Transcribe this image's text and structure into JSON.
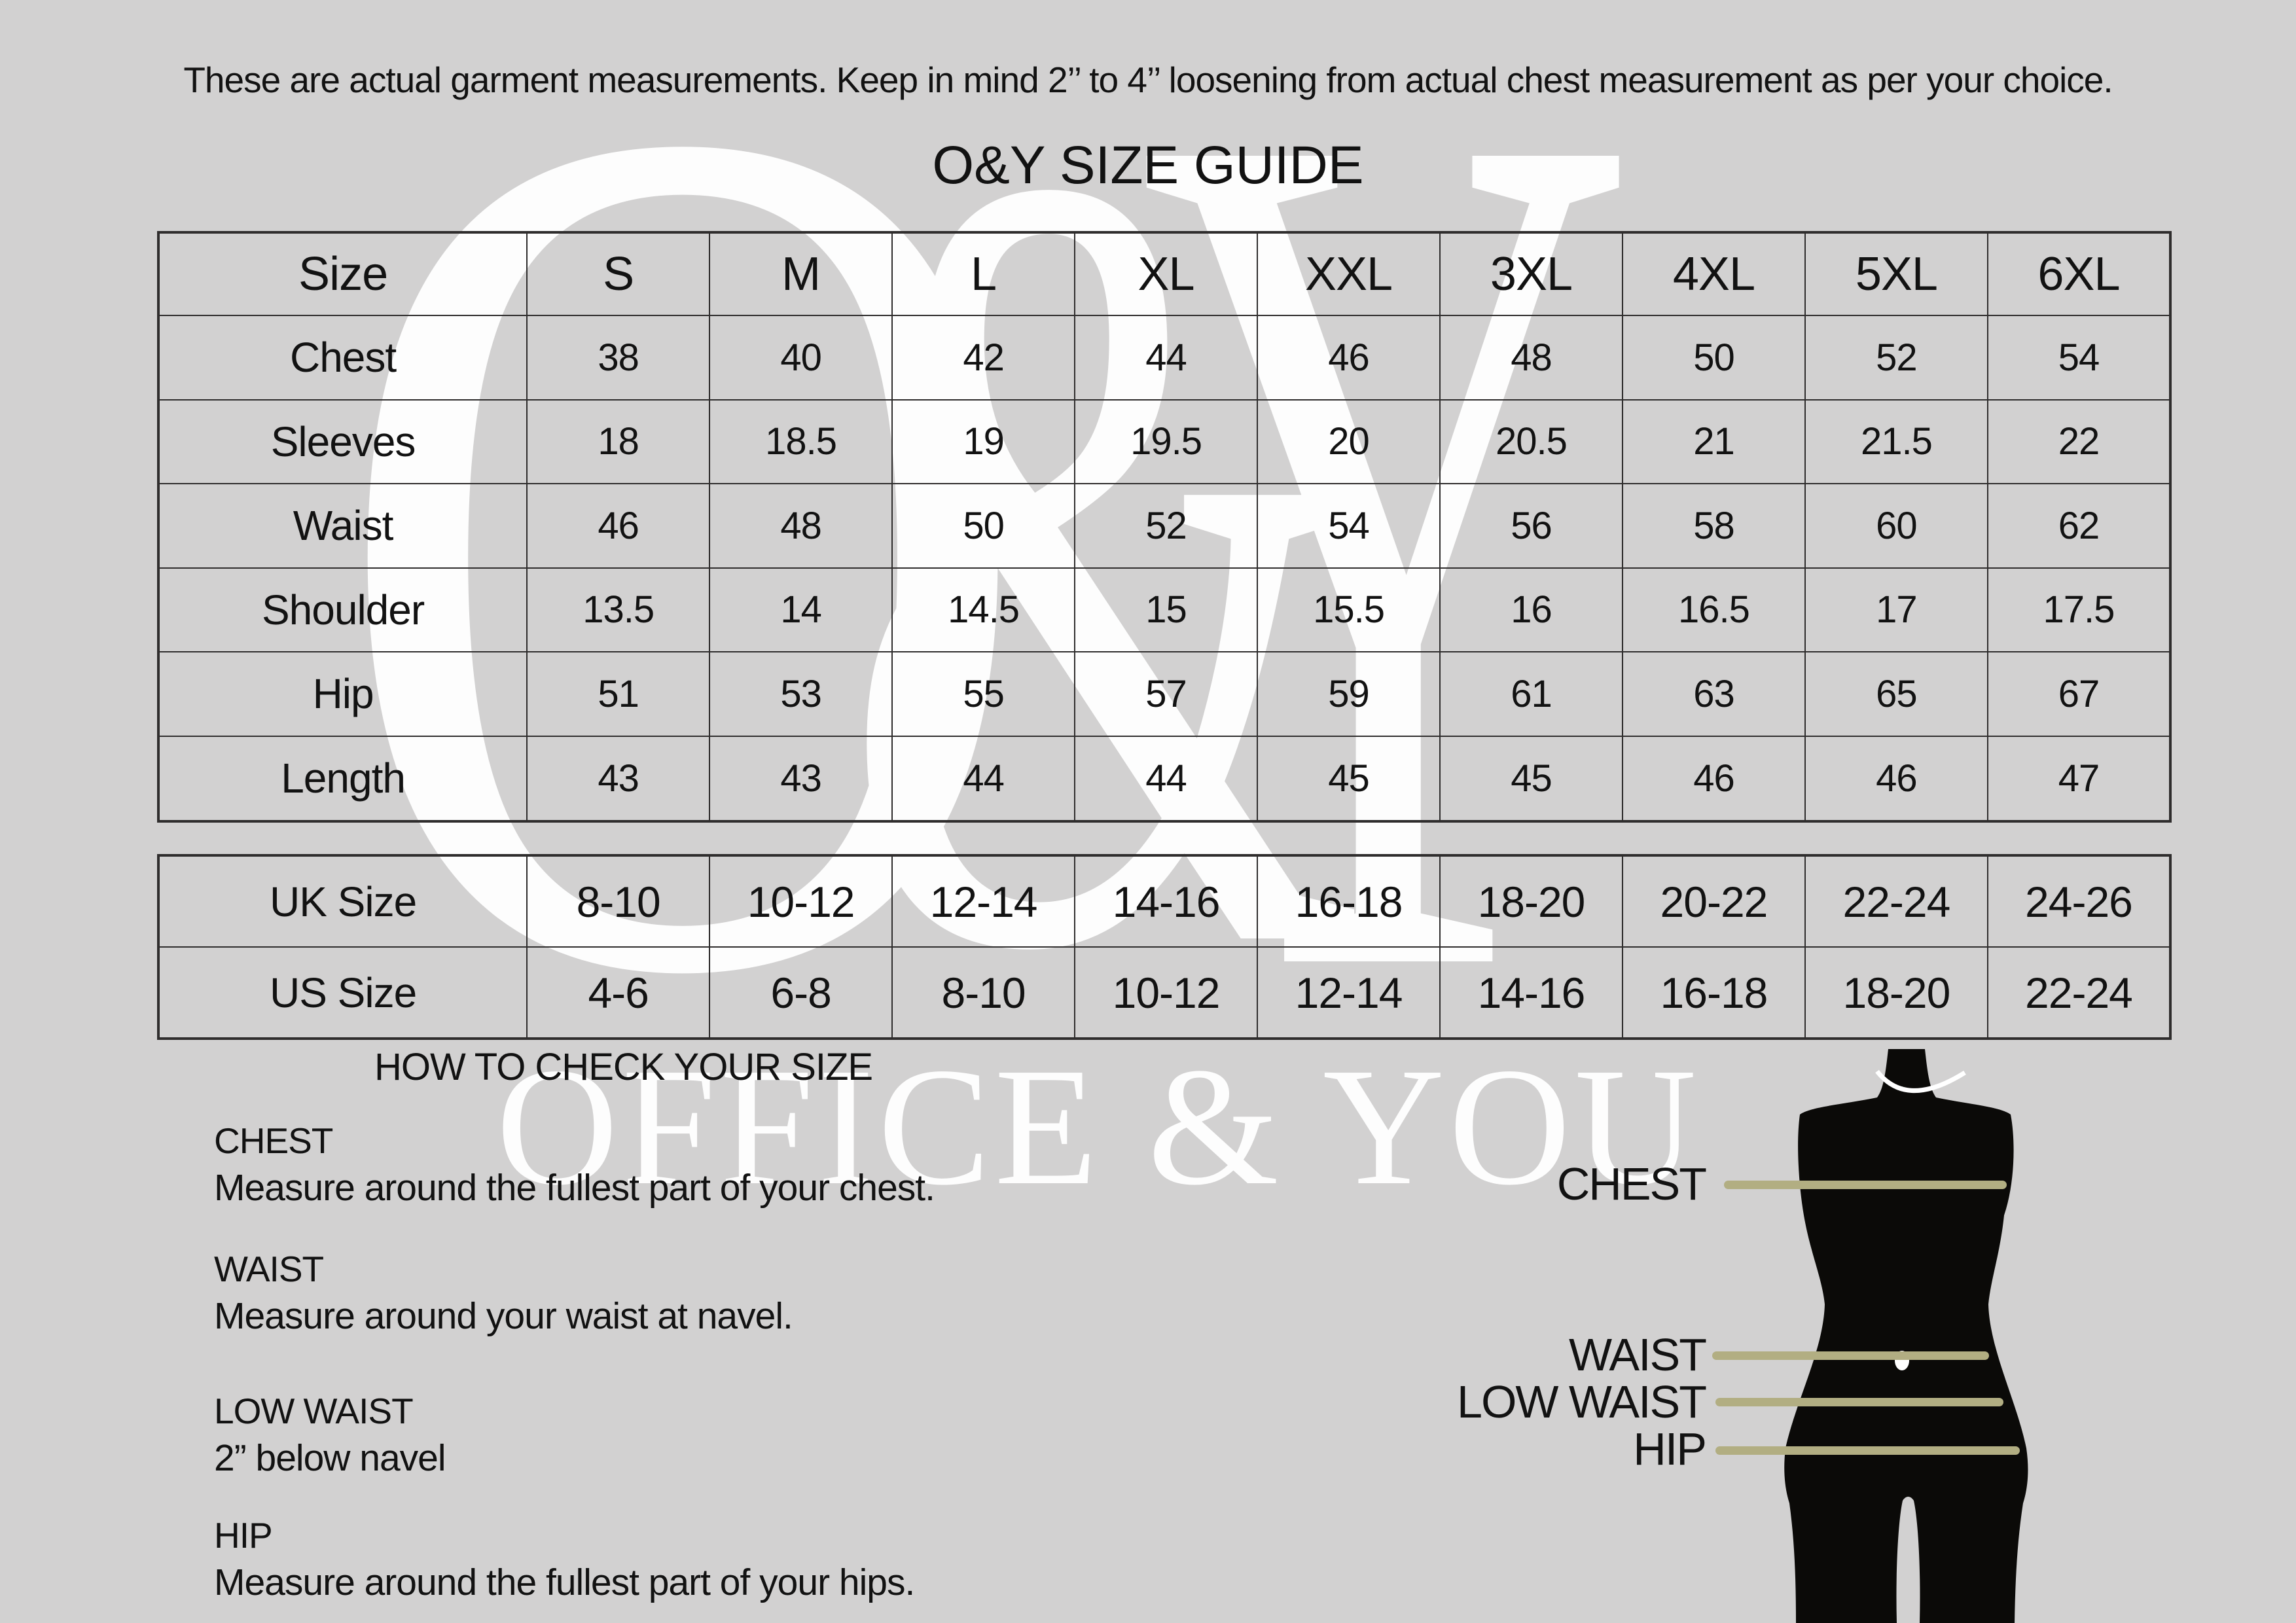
{
  "page": {
    "disclaimer": "These are actual garment measurements. Keep in mind 2’’ to 4’’ loosening from actual chest measurement as per your choice.",
    "title": "O&Y SIZE GUIDE"
  },
  "watermark": {
    "logo_o": "O",
    "logo_amp": "&",
    "logo_y": "Y",
    "brand_text": "OFFICE & YOU"
  },
  "size_table": {
    "header": [
      "Size",
      "S",
      "M",
      "L",
      "XL",
      "XXL",
      "3XL",
      "4XL",
      "5XL",
      "6XL"
    ],
    "rows": [
      {
        "label": "Chest",
        "values": [
          "38",
          "40",
          "42",
          "44",
          "46",
          "48",
          "50",
          "52",
          "54"
        ]
      },
      {
        "label": "Sleeves",
        "values": [
          "18",
          "18.5",
          "19",
          "19.5",
          "20",
          "20.5",
          "21",
          "21.5",
          "22"
        ]
      },
      {
        "label": "Waist",
        "values": [
          "46",
          "48",
          "50",
          "52",
          "54",
          "56",
          "58",
          "60",
          "62"
        ]
      },
      {
        "label": "Shoulder",
        "values": [
          "13.5",
          "14",
          "14.5",
          "15",
          "15.5",
          "16",
          "16.5",
          "17",
          "17.5"
        ]
      },
      {
        "label": "Hip",
        "values": [
          "51",
          "53",
          "55",
          "57",
          "59",
          "61",
          "63",
          "65",
          "67"
        ]
      },
      {
        "label": "Length",
        "values": [
          "43",
          "43",
          "44",
          "44",
          "45",
          "45",
          "46",
          "46",
          "47"
        ]
      }
    ]
  },
  "conversion_table": {
    "rows": [
      {
        "label": "UK Size",
        "values": [
          "8-10",
          "10-12",
          "12-14",
          "14-16",
          "16-18",
          "18-20",
          "20-22",
          "22-24",
          "24-26"
        ]
      },
      {
        "label": "US Size",
        "values": [
          "4-6",
          "6-8",
          "8-10",
          "10-12",
          "12-14",
          "14-16",
          "16-18",
          "18-20",
          "22-24"
        ]
      }
    ]
  },
  "instructions": {
    "heading": "HOW TO CHECK YOUR SIZE",
    "sections": [
      {
        "title": "CHEST",
        "text": "Measure around the fullest part of your chest."
      },
      {
        "title": "WAIST",
        "text": "Measure around your waist at navel."
      },
      {
        "title": "LOW WAIST",
        "text": "2” below navel"
      },
      {
        "title": "HIP",
        "text": "Measure around the fullest part of your hips."
      }
    ]
  },
  "figure": {
    "labels": [
      {
        "text": "CHEST"
      },
      {
        "text": "WAIST"
      },
      {
        "text": "LOW WAIST"
      },
      {
        "text": "HIP"
      }
    ]
  },
  "colors": {
    "background": "#d2d1d1",
    "table_border": "#2f2d2d",
    "text": "#121212",
    "watermark": "#fdfdfd",
    "measure_line": "#b2ae82",
    "silhouette": "#0b0a08"
  }
}
